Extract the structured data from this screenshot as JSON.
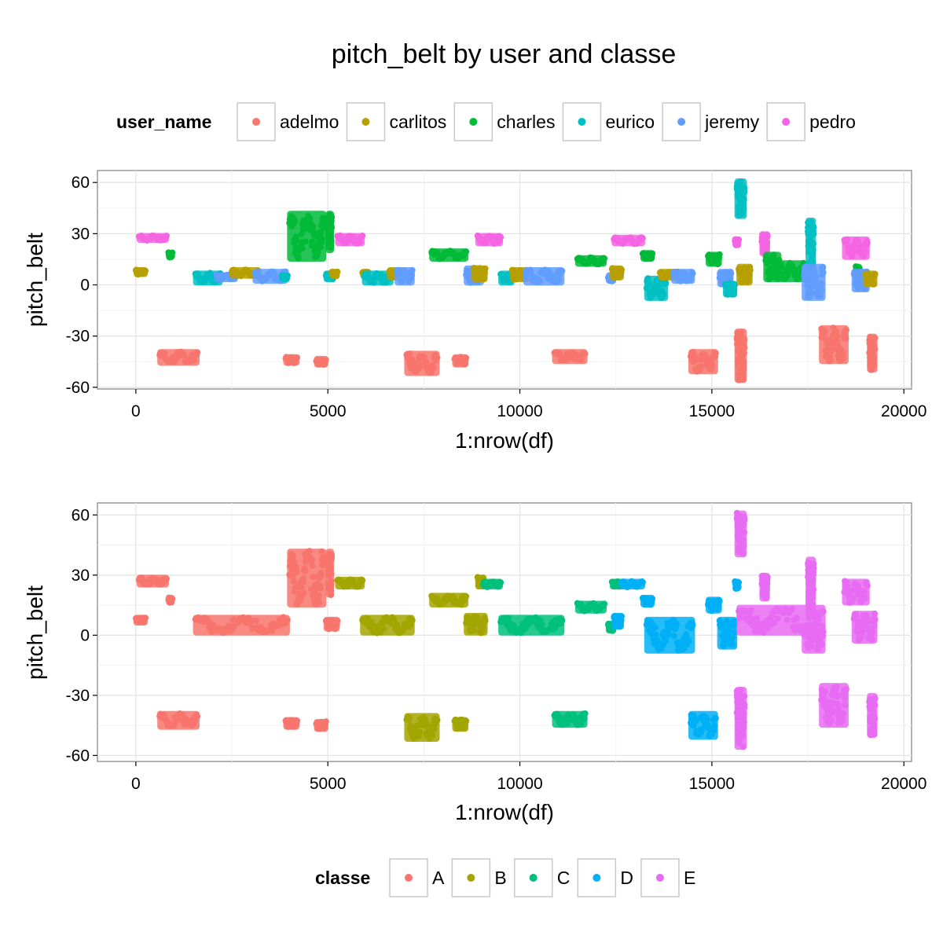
{
  "title": "pitch_belt by user and classe",
  "colors": {
    "adelmo": "#F8766D",
    "carlitos": "#B79F00",
    "charles": "#00BA38",
    "eurico": "#00BFC4",
    "jeremy": "#619CFF",
    "pedro": "#F564E3",
    "A": "#F8766D",
    "B": "#A3A500",
    "C": "#00BF7D",
    "D": "#00B0F6",
    "E": "#E76BF3"
  },
  "legend_top": {
    "title": "user_name",
    "items": [
      {
        "key": "adelmo",
        "label": "adelmo"
      },
      {
        "key": "carlitos",
        "label": "carlitos"
      },
      {
        "key": "charles",
        "label": "charles"
      },
      {
        "key": "eurico",
        "label": "eurico"
      },
      {
        "key": "jeremy",
        "label": "jeremy"
      },
      {
        "key": "pedro",
        "label": "pedro"
      }
    ]
  },
  "legend_bottom": {
    "title": "classe",
    "items": [
      {
        "key": "A",
        "label": "A"
      },
      {
        "key": "B",
        "label": "B"
      },
      {
        "key": "C",
        "label": "C"
      },
      {
        "key": "D",
        "label": "D"
      },
      {
        "key": "E",
        "label": "E"
      }
    ]
  },
  "chart_data": [
    {
      "type": "scatter",
      "xlabel": "1:nrow(df)",
      "ylabel": "pitch_belt",
      "xlim": [
        -1000,
        20200
      ],
      "ylim": [
        -61,
        67
      ],
      "xticks": [
        0,
        5000,
        10000,
        15000,
        20000
      ],
      "yticks": [
        -60,
        -30,
        0,
        30,
        60
      ],
      "grid": true,
      "color_by": "user_name",
      "series_note": "clusters of points: [x_start, x_end, y_min, y_max, user_name]",
      "clusters": [
        [
          0,
          250,
          6,
          9,
          "carlitos"
        ],
        [
          80,
          800,
          26,
          29,
          "pedro"
        ],
        [
          620,
          1600,
          -46,
          -39,
          "adelmo"
        ],
        [
          850,
          950,
          16,
          19,
          "charles"
        ],
        [
          1550,
          2200,
          1,
          7,
          "eurico"
        ],
        [
          2100,
          2600,
          3,
          6,
          "jeremy"
        ],
        [
          2500,
          3200,
          5,
          9,
          "carlitos"
        ],
        [
          3100,
          3900,
          2,
          8,
          "jeremy"
        ],
        [
          3800,
          3950,
          3,
          6,
          "eurico"
        ],
        [
          3900,
          4200,
          -46,
          -42,
          "adelmo"
        ],
        [
          4000,
          4900,
          15,
          42,
          "charles"
        ],
        [
          4700,
          4950,
          -47,
          -43,
          "adelmo"
        ],
        [
          4950,
          5150,
          3,
          7,
          "eurico"
        ],
        [
          5000,
          5100,
          20,
          42,
          "charles"
        ],
        [
          5100,
          5250,
          5,
          8,
          "carlitos"
        ],
        [
          5250,
          5900,
          24,
          29,
          "pedro"
        ],
        [
          5900,
          6050,
          5,
          8,
          "carlitos"
        ],
        [
          5950,
          6650,
          1,
          7,
          "eurico"
        ],
        [
          6600,
          7000,
          4,
          9,
          "carlitos"
        ],
        [
          6800,
          7200,
          1,
          9,
          "jeremy"
        ],
        [
          7050,
          7850,
          -52,
          -40,
          "adelmo"
        ],
        [
          7700,
          8600,
          15,
          20,
          "charles"
        ],
        [
          8300,
          8600,
          -47,
          -42,
          "adelmo"
        ],
        [
          8600,
          9000,
          1,
          10,
          "jeremy"
        ],
        [
          8800,
          9100,
          3,
          10,
          "carlitos"
        ],
        [
          8900,
          9500,
          24,
          29,
          "pedro"
        ],
        [
          9500,
          9800,
          1,
          7,
          "eurico"
        ],
        [
          9800,
          10200,
          3,
          9,
          "carlitos"
        ],
        [
          10150,
          11100,
          1,
          9,
          "jeremy"
        ],
        [
          10900,
          11700,
          -45,
          -39,
          "adelmo"
        ],
        [
          11500,
          12200,
          12,
          16,
          "charles"
        ],
        [
          12300,
          12450,
          2,
          6,
          "jeremy"
        ],
        [
          12400,
          12650,
          4,
          10,
          "carlitos"
        ],
        [
          12450,
          13200,
          24,
          28,
          "pedro"
        ],
        [
          13200,
          13450,
          15,
          19,
          "charles"
        ],
        [
          13300,
          13800,
          -8,
          4,
          "eurico"
        ],
        [
          13650,
          14100,
          4,
          8,
          "carlitos"
        ],
        [
          14000,
          14500,
          2,
          8,
          "jeremy"
        ],
        [
          14450,
          15100,
          -51,
          -39,
          "adelmo"
        ],
        [
          14900,
          15200,
          12,
          18,
          "charles"
        ],
        [
          15200,
          15500,
          0,
          8,
          "jeremy"
        ],
        [
          15350,
          15600,
          -6,
          1,
          "eurico"
        ],
        [
          15600,
          15700,
          23,
          27,
          "pedro"
        ],
        [
          15650,
          15850,
          40,
          61,
          "eurico"
        ],
        [
          15650,
          15850,
          -56,
          -27,
          "adelmo"
        ],
        [
          15700,
          16000,
          1,
          11,
          "carlitos"
        ],
        [
          16300,
          16450,
          18,
          30,
          "pedro"
        ],
        [
          16400,
          16750,
          3,
          18,
          "charles"
        ],
        [
          16700,
          17400,
          3,
          13,
          "charles"
        ],
        [
          17500,
          17650,
          1,
          38,
          "eurico"
        ],
        [
          17400,
          17900,
          -8,
          11,
          "jeremy"
        ],
        [
          17850,
          18500,
          -45,
          -25,
          "adelmo"
        ],
        [
          18450,
          19050,
          16,
          27,
          "pedro"
        ],
        [
          18750,
          18850,
          4,
          11,
          "charles"
        ],
        [
          18700,
          19050,
          -3,
          8,
          "jeremy"
        ],
        [
          19000,
          19250,
          0,
          7,
          "carlitos"
        ],
        [
          19100,
          19250,
          -50,
          -30,
          "adelmo"
        ]
      ]
    },
    {
      "type": "scatter",
      "xlabel": "1:nrow(df)",
      "ylabel": "pitch_belt",
      "xlim": [
        -1000,
        20200
      ],
      "ylim": [
        -63,
        66
      ],
      "xticks": [
        0,
        5000,
        10000,
        15000,
        20000
      ],
      "yticks": [
        -60,
        -30,
        0,
        30,
        60
      ],
      "grid": true,
      "color_by": "classe",
      "series_note": "clusters of points: [x_start, x_end, y_min, y_max, classe]",
      "clusters": [
        [
          0,
          250,
          6,
          9,
          "A"
        ],
        [
          80,
          800,
          25,
          29,
          "A"
        ],
        [
          620,
          1600,
          -46,
          -39,
          "A"
        ],
        [
          850,
          950,
          16,
          19,
          "A"
        ],
        [
          1550,
          3950,
          1,
          9,
          "A"
        ],
        [
          3900,
          4200,
          -46,
          -42,
          "A"
        ],
        [
          4000,
          4900,
          15,
          42,
          "A"
        ],
        [
          4700,
          4950,
          -47,
          -43,
          "A"
        ],
        [
          4950,
          5250,
          3,
          8,
          "A"
        ],
        [
          5000,
          5100,
          20,
          42,
          "A"
        ],
        [
          5250,
          5900,
          24,
          28,
          "B"
        ],
        [
          5900,
          7200,
          1,
          9,
          "B"
        ],
        [
          7050,
          7850,
          -52,
          -40,
          "B"
        ],
        [
          7700,
          8600,
          15,
          20,
          "B"
        ],
        [
          8300,
          8600,
          -47,
          -42,
          "B"
        ],
        [
          8600,
          9100,
          1,
          10,
          "B"
        ],
        [
          8900,
          9050,
          24,
          29,
          "B"
        ],
        [
          9050,
          9500,
          24,
          27,
          "C"
        ],
        [
          9500,
          11100,
          1,
          9,
          "C"
        ],
        [
          10900,
          11700,
          -45,
          -39,
          "C"
        ],
        [
          11500,
          12200,
          12,
          16,
          "C"
        ],
        [
          12300,
          12450,
          2,
          6,
          "C"
        ],
        [
          12400,
          12650,
          24,
          27,
          "C"
        ],
        [
          12650,
          13200,
          24,
          27,
          "D"
        ],
        [
          12450,
          12650,
          4,
          10,
          "D"
        ],
        [
          13200,
          13450,
          15,
          19,
          "D"
        ],
        [
          13300,
          14500,
          -8,
          8,
          "D"
        ],
        [
          14450,
          15100,
          -51,
          -39,
          "D"
        ],
        [
          14900,
          15200,
          12,
          18,
          "D"
        ],
        [
          15200,
          15600,
          -6,
          8,
          "D"
        ],
        [
          15600,
          15700,
          23,
          27,
          "D"
        ],
        [
          15650,
          15850,
          40,
          61,
          "E"
        ],
        [
          15650,
          15850,
          -56,
          -27,
          "E"
        ],
        [
          15700,
          17900,
          1,
          14,
          "E"
        ],
        [
          16300,
          16450,
          18,
          30,
          "E"
        ],
        [
          17500,
          17650,
          10,
          38,
          "E"
        ],
        [
          17400,
          17900,
          -8,
          5,
          "E"
        ],
        [
          17850,
          18500,
          -45,
          -25,
          "E"
        ],
        [
          18450,
          19050,
          16,
          27,
          "E"
        ],
        [
          18700,
          19250,
          -3,
          11,
          "E"
        ],
        [
          19100,
          19250,
          -50,
          -30,
          "E"
        ]
      ]
    }
  ]
}
